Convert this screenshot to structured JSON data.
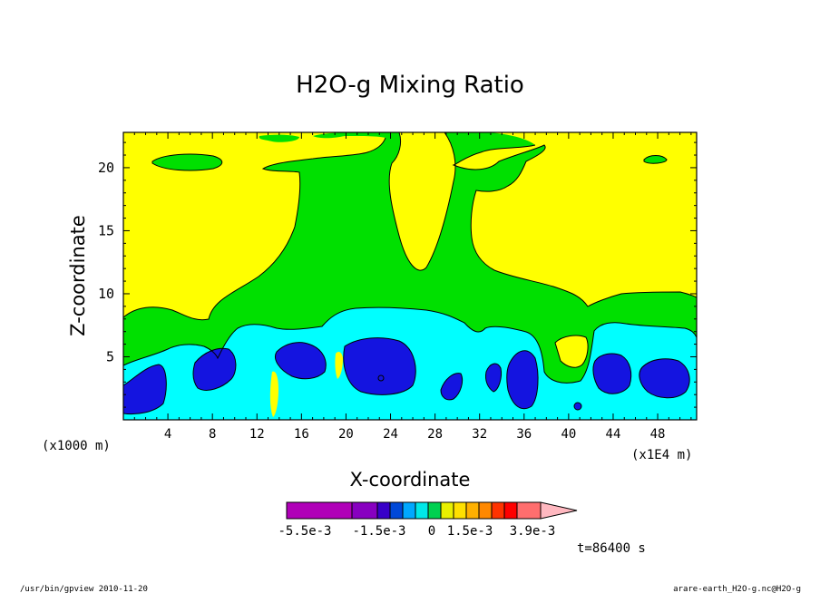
{
  "chart_data": {
    "type": "heatmap",
    "title": "H2O-g Mixing Ratio",
    "xlabel": "X-coordinate",
    "ylabel": "Z-coordinate",
    "x_unit_label": "(x1E4 m)",
    "y_unit_label": "(x1000 m)",
    "xlim": [
      0,
      51.5
    ],
    "ylim": [
      0,
      22.8
    ],
    "x_ticks": [
      "4",
      "8",
      "12",
      "16",
      "20",
      "24",
      "28",
      "32",
      "36",
      "40",
      "44",
      "48"
    ],
    "y_ticks": [
      "5",
      "10",
      "15",
      "20"
    ],
    "colorbar": {
      "colors": [
        "#b000b8",
        "#8800c0",
        "#3800c8",
        "#0048d8",
        "#00a8ff",
        "#00e8e8",
        "#00d050",
        "#e8f000",
        "#ffe000",
        "#ffb000",
        "#ff8800",
        "#ff3300",
        "#ff0000",
        "#ff6e6e",
        "#ffb8c0"
      ],
      "labels": [
        "-5.5e-3",
        "-1.5e-3",
        "0",
        "1.5e-3",
        "3.9e-3"
      ]
    },
    "regions": {
      "background": "#ffff00",
      "green": "#00e000",
      "cyan": "#00ffff",
      "blue": "#1414e0"
    }
  },
  "time_label": "t=86400 s",
  "footer_left": "/usr/bin/gpview  2010-11-20",
  "footer_right": "arare-earth_H2O-g.nc@H2O-g"
}
